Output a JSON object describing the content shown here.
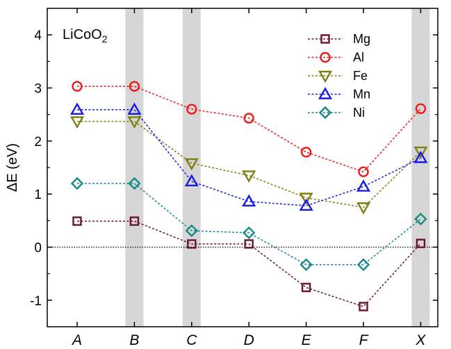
{
  "chart_data": {
    "type": "line",
    "annotation": {
      "base": "LiCoO",
      "sub": "2"
    },
    "ylabel": "ΔE (eV)",
    "xlabel": "",
    "categories": [
      "A",
      "B",
      "C",
      "D",
      "E",
      "F",
      "X"
    ],
    "highlighted_categories": [
      "B",
      "C",
      "X"
    ],
    "ylim": [
      -1.5,
      4.5
    ],
    "yticks": [
      -1,
      0,
      1,
      2,
      3,
      4
    ],
    "ytick_labels": [
      "-1",
      "0",
      "1",
      "2",
      "3",
      "4"
    ],
    "zero_line": true,
    "grid": false,
    "legend_position": "top-right",
    "series": [
      {
        "name": "Mg",
        "marker": "square",
        "color": "#6b1230",
        "values": [
          0.49,
          0.49,
          0.06,
          0.06,
          -0.76,
          -1.12,
          0.07
        ]
      },
      {
        "name": "Al",
        "marker": "circle",
        "color": "#ee1a1a",
        "values": [
          3.03,
          3.03,
          2.6,
          2.43,
          1.79,
          1.42,
          2.61
        ]
      },
      {
        "name": "Fe",
        "marker": "triangle-down",
        "color": "#7f7f12",
        "values": [
          2.37,
          2.37,
          1.58,
          1.35,
          0.93,
          0.75,
          1.8
        ]
      },
      {
        "name": "Mn",
        "marker": "triangle-up",
        "color": "#1a1ae6",
        "values": [
          2.59,
          2.59,
          1.24,
          0.86,
          0.78,
          1.14,
          1.68
        ]
      },
      {
        "name": "Ni",
        "marker": "diamond",
        "color": "#138a84",
        "values": [
          1.2,
          1.2,
          0.31,
          0.27,
          -0.33,
          -0.33,
          0.53
        ]
      }
    ]
  }
}
